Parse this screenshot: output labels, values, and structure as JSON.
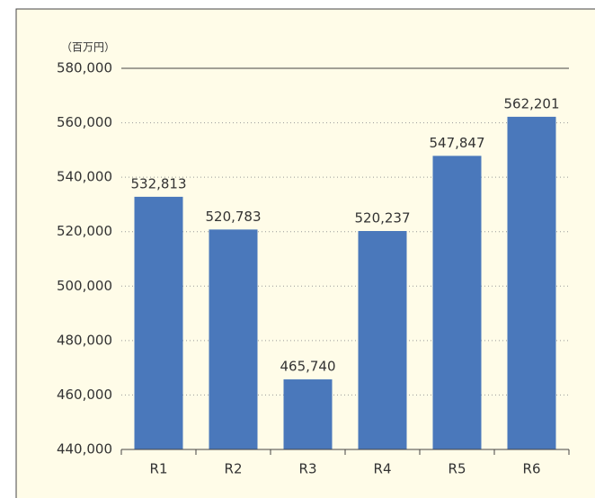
{
  "chart_data": {
    "type": "bar",
    "unit_label": "（百万円）",
    "categories": [
      "R1",
      "R2",
      "R3",
      "R4",
      "R5",
      "R6"
    ],
    "values": [
      532813,
      520783,
      465740,
      520237,
      547847,
      562201
    ],
    "value_labels": [
      "532,813",
      "520,783",
      "465,740",
      "520,237",
      "547,847",
      "562,201"
    ],
    "color": "#4a78bb",
    "ylim": [
      440000,
      580000
    ],
    "yticks": [
      {
        "value": 440000,
        "label": "440,000"
      },
      {
        "value": 460000,
        "label": "460,000"
      },
      {
        "value": 480000,
        "label": "480,000"
      },
      {
        "value": 500000,
        "label": "500,000"
      },
      {
        "value": 520000,
        "label": "520,000"
      },
      {
        "value": 540000,
        "label": "540,000"
      },
      {
        "value": 560000,
        "label": "560,000"
      },
      {
        "value": 580000,
        "label": "580,000"
      }
    ],
    "grid": true
  }
}
